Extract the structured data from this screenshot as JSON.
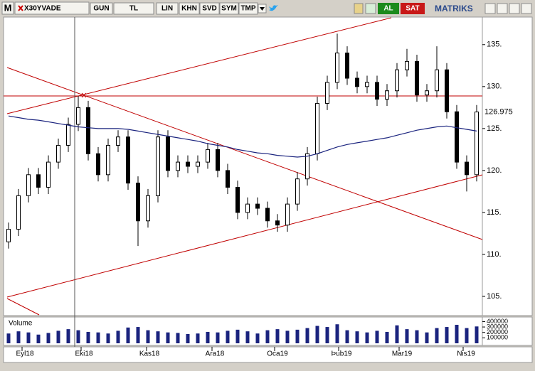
{
  "toolbar": {
    "menu": "M",
    "symbol": "X30YVADE",
    "buttons": [
      "GUN",
      "TL",
      "LIN",
      "KHN",
      "SVD",
      "SYM",
      "TMP"
    ],
    "buy": "AL",
    "sell": "SAT",
    "brand": "MATRIKS"
  },
  "chart_data": {
    "type": "candlestick",
    "open": [
      111.5,
      113,
      117,
      119.5,
      118,
      121,
      123,
      125.5,
      127.5,
      122,
      119.5,
      123,
      124,
      118.5,
      114,
      117,
      124,
      120,
      121,
      120.5,
      121,
      122.5,
      120,
      118,
      115,
      116,
      115.5,
      114,
      113.5,
      116,
      119,
      122,
      128,
      130.5,
      134,
      131,
      130,
      130.5,
      128.5,
      129.5,
      132,
      133,
      129,
      129.5,
      132,
      127,
      121,
      119.5
    ],
    "high": [
      113.8,
      117.8,
      120.3,
      120.3,
      121.8,
      123.8,
      126.3,
      128.9,
      128.3,
      122.8,
      123.8,
      124.8,
      124.8,
      119.3,
      117.8,
      124.8,
      124.8,
      121.8,
      121.8,
      121.8,
      123.3,
      123.3,
      120.8,
      118.8,
      116.8,
      116.8,
      116.3,
      114.8,
      116.8,
      119.8,
      122.8,
      128.8,
      131.3,
      136.3,
      134.8,
      131.8,
      131.3,
      131.3,
      130.3,
      132.8,
      134.5,
      133.8,
      130.3,
      134.8,
      132.8,
      127.8,
      121.8,
      127.8
    ],
    "low": [
      110.7,
      112.2,
      116.2,
      117.2,
      117.2,
      120.2,
      122.2,
      124.7,
      121.2,
      118.7,
      118.7,
      122.2,
      117.7,
      111,
      113.2,
      116.2,
      119.2,
      119.2,
      119.7,
      119.7,
      120.2,
      119.2,
      117.2,
      114.2,
      114.2,
      114.7,
      113.2,
      112.7,
      112.7,
      115.2,
      118.2,
      121.2,
      127.2,
      129.7,
      130.2,
      129.2,
      129.2,
      127.7,
      127.7,
      128.7,
      131.2,
      128.2,
      128.2,
      128.7,
      126.2,
      120.2,
      117.5,
      118.7
    ],
    "close": [
      113,
      117,
      119.5,
      118,
      121,
      123,
      125.5,
      127.5,
      122,
      119.5,
      123,
      124,
      118.5,
      114,
      117,
      124,
      120,
      121,
      120.5,
      121,
      122.5,
      120,
      118,
      115,
      116,
      115.5,
      114,
      113.5,
      116,
      119,
      122,
      128,
      130.5,
      134,
      131,
      130,
      130.5,
      128.5,
      129.5,
      132,
      133,
      129,
      129.5,
      132,
      127,
      121,
      119.5,
      126.975
    ],
    "moving_average": [
      126.5,
      126.3,
      126.1,
      126,
      125.8,
      125.6,
      125.4,
      125.2,
      125.1,
      125,
      125,
      125,
      124.9,
      124.7,
      124.5,
      124.3,
      124.1,
      123.9,
      123.7,
      123.5,
      123.2,
      123,
      122.8,
      122.5,
      122.3,
      122.1,
      122,
      121.8,
      121.7,
      121.6,
      121.7,
      122,
      122.4,
      122.8,
      123.1,
      123.3,
      123.5,
      123.7,
      123.9,
      124.2,
      124.5,
      124.8,
      125,
      125.2,
      125.3,
      125.1,
      124.9,
      124.7
    ],
    "ma_color": "#1a237e",
    "ylim": [
      102.8,
      138.2
    ],
    "yticks": [
      {
        "value": 135,
        "label": "135."
      },
      {
        "value": 130,
        "label": "130."
      },
      {
        "value": 125,
        "label": "125."
      },
      {
        "value": 120,
        "label": "120."
      },
      {
        "value": 115,
        "label": "115."
      },
      {
        "value": 110,
        "label": "110."
      },
      {
        "value": 105,
        "label": "105."
      }
    ],
    "volume_label": "Volume",
    "volume": [
      180000,
      220000,
      200000,
      160000,
      190000,
      230000,
      260000,
      240000,
      210000,
      200000,
      180000,
      230000,
      290000,
      300000,
      240000,
      220000,
      200000,
      190000,
      170000,
      180000,
      210000,
      200000,
      230000,
      250000,
      220000,
      180000,
      240000,
      260000,
      230000,
      250000,
      280000,
      320000,
      300000,
      350000,
      240000,
      220000,
      200000,
      230000,
      210000,
      330000,
      260000,
      240000,
      200000,
      280000,
      300000,
      340000,
      280000,
      310000
    ],
    "volume_color": "#1a237e",
    "vlim": [
      0,
      450000
    ],
    "vticks": [
      400000,
      300000,
      200000,
      100000
    ],
    "x_labels": [
      "Eyl18",
      "Eki18",
      "Kas18",
      "Ara18",
      "Oca19",
      "Þub19",
      "Mar19",
      "Nis19"
    ]
  }
}
